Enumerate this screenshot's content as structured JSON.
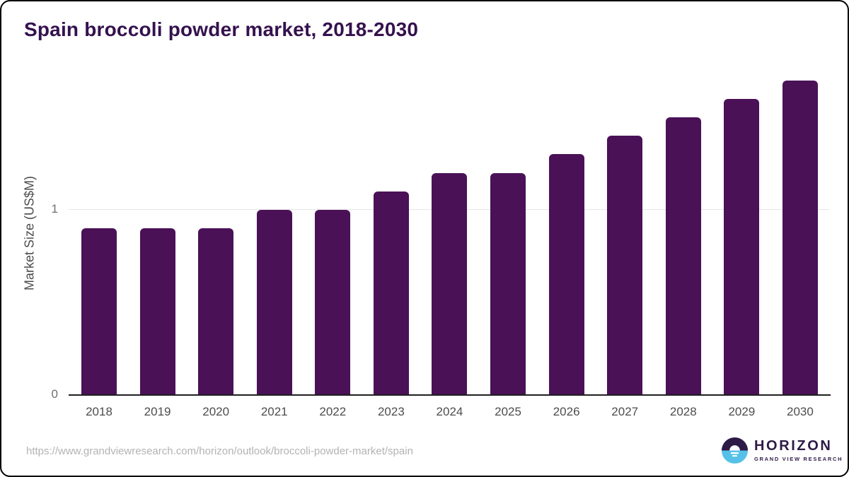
{
  "page": {
    "source_url": "https://www.grandviewresearch.com/horizon/outlook/broccoli-powder-market/spain"
  },
  "chart_data": {
    "type": "bar",
    "title": "Spain broccoli powder market, 2018-2030",
    "categories": [
      "2018",
      "2019",
      "2020",
      "2021",
      "2022",
      "2023",
      "2024",
      "2025",
      "2026",
      "2027",
      "2028",
      "2029",
      "2030"
    ],
    "values": [
      0.9,
      0.9,
      0.9,
      1.0,
      1.0,
      1.1,
      1.2,
      1.2,
      1.3,
      1.4,
      1.5,
      1.6,
      1.7
    ],
    "xlabel": "",
    "ylabel": "Market Size (US$M)",
    "yticks": [
      "0",
      "1"
    ],
    "ylim": [
      0,
      1.77
    ],
    "grid": "single-horizontal-gridline-at-1",
    "legend": "none",
    "bar_color": "#4a1157"
  },
  "logo": {
    "name": "HORIZON",
    "subtitle": "GRAND VIEW RESEARCH",
    "icon": "sunset-over-water",
    "dark_color": "#2e1a47",
    "blue_color": "#56c1e8"
  },
  "colors": {
    "title_text": "#35114e",
    "axis_line": "#1f1f1f",
    "gridline": "#e6e6e6",
    "tick_label": "#6f6f6f",
    "x_label": "#4d4d4d",
    "url_text": "#b3b3b3",
    "background": "#ffffff",
    "border": "#000000"
  }
}
